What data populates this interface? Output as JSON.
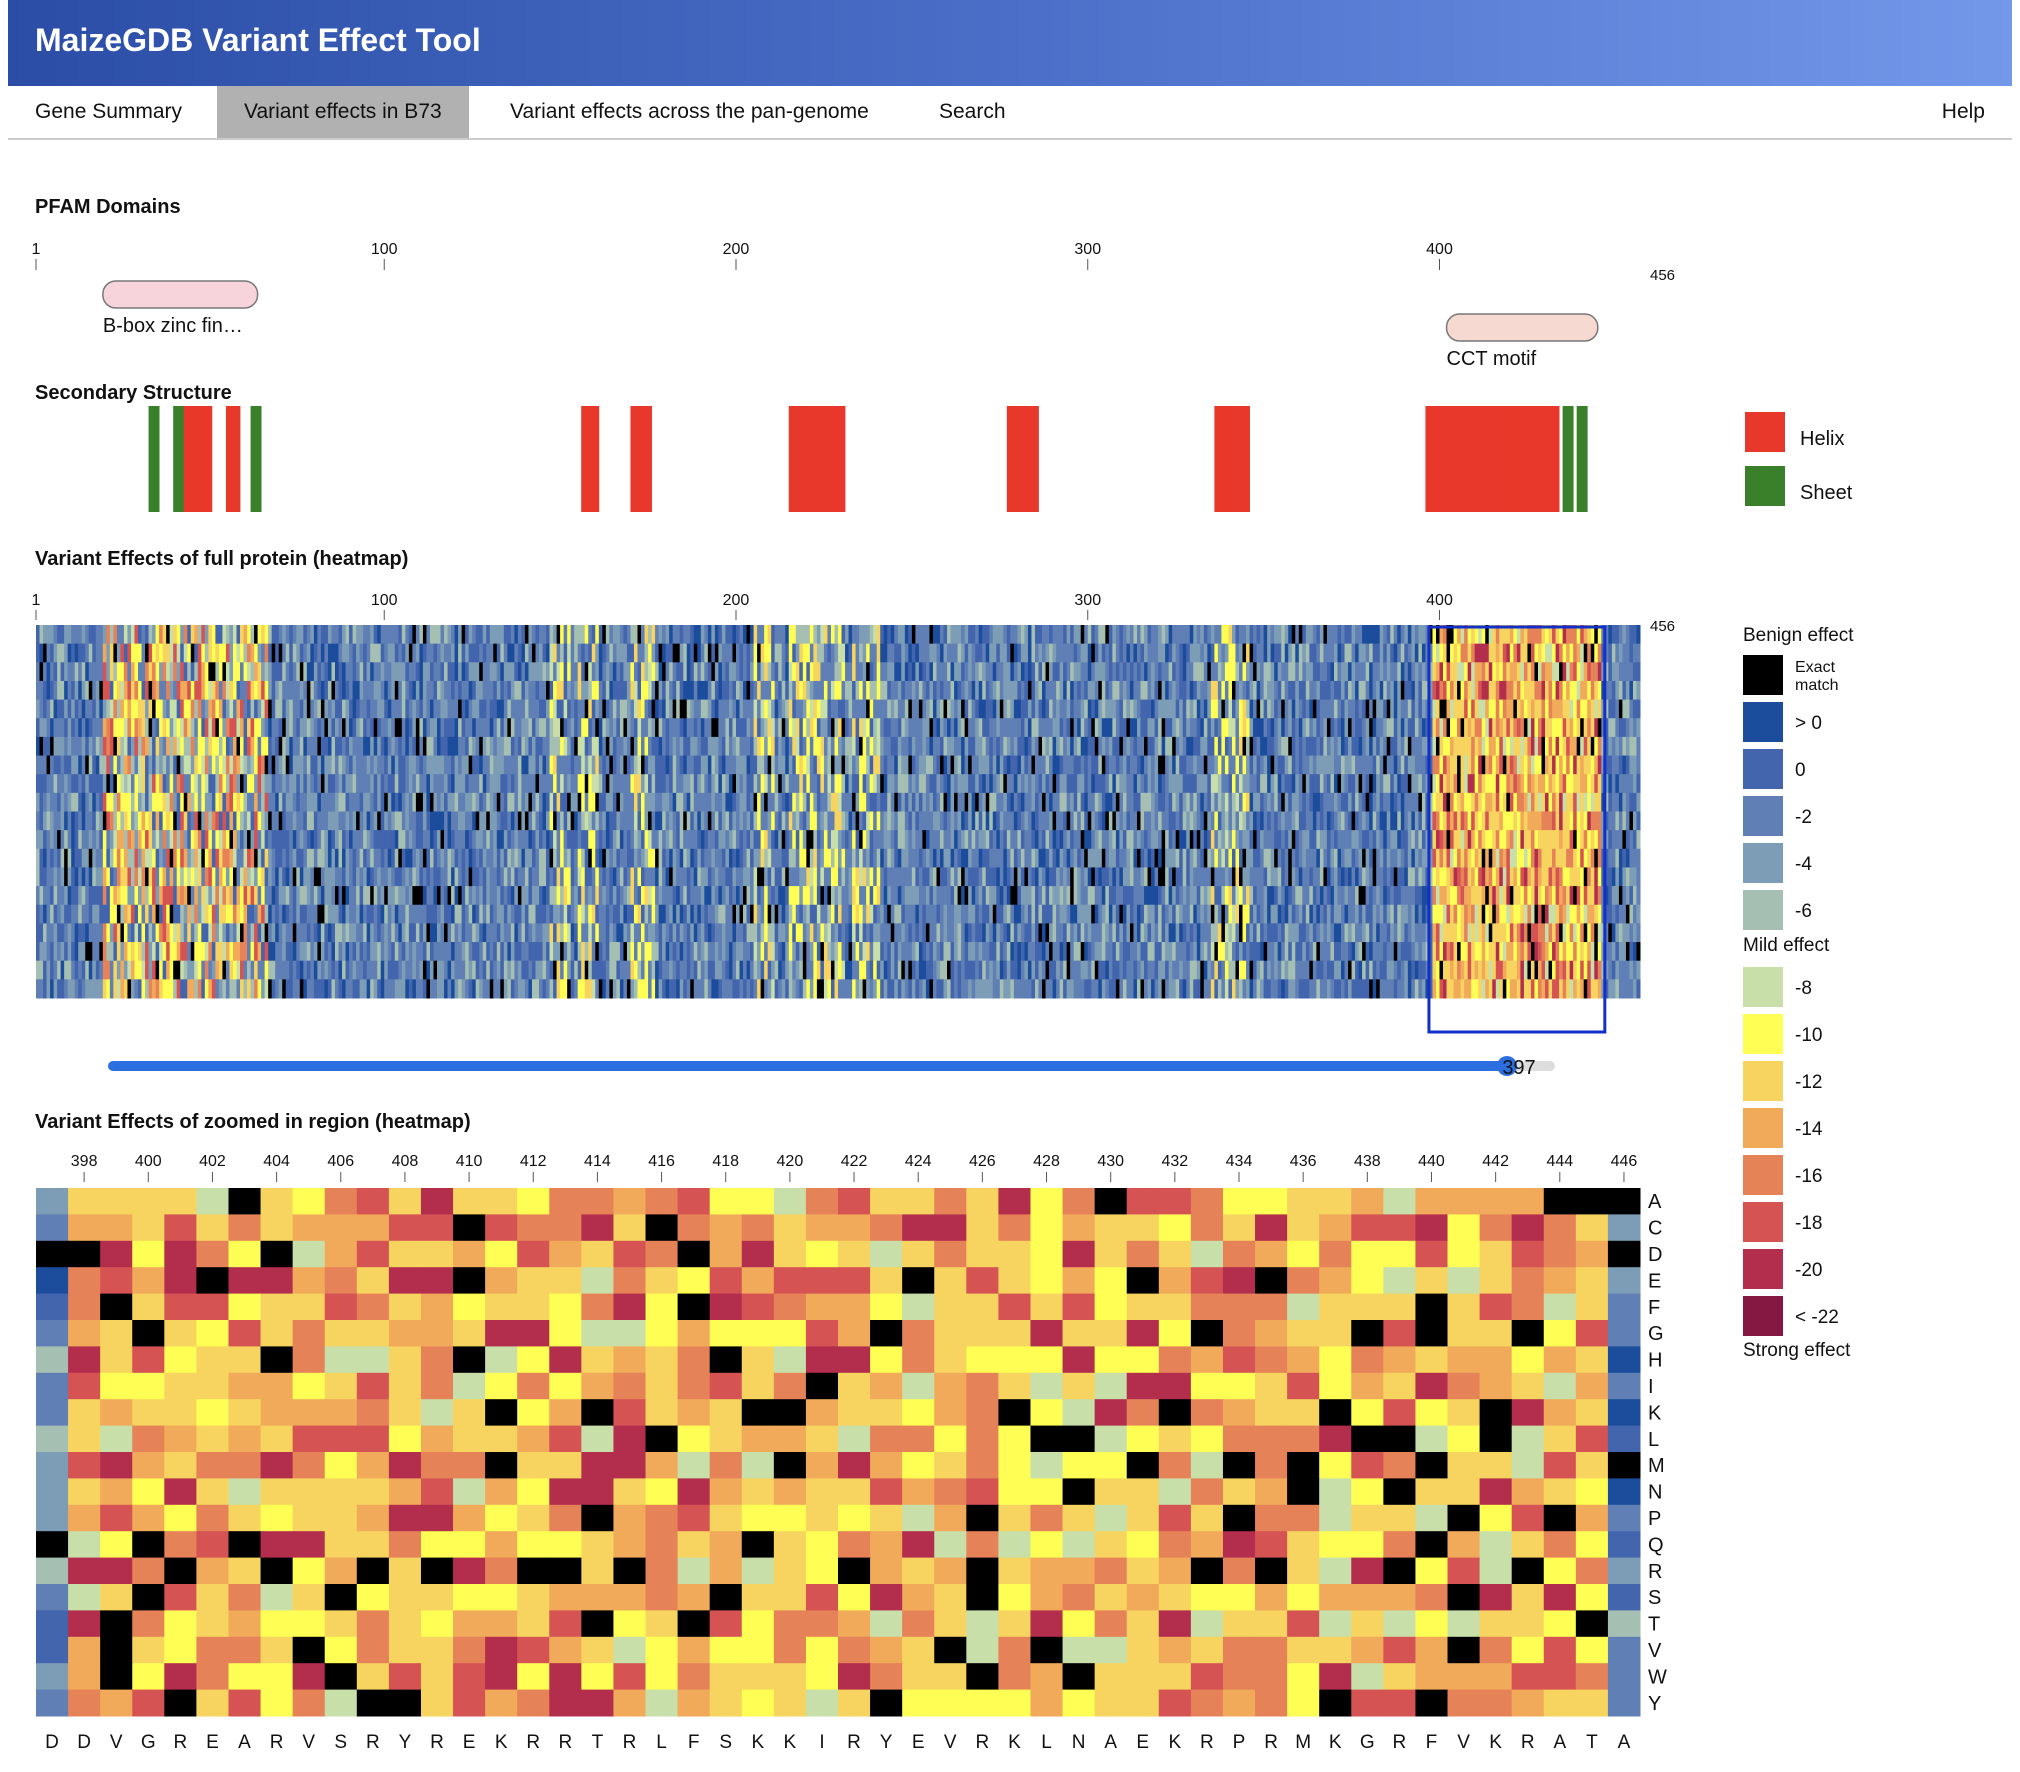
{
  "app": {
    "title": "MaizeGDB Variant Effect Tool"
  },
  "nav": {
    "tabs": [
      {
        "label": "Gene Summary",
        "active": false
      },
      {
        "label": "Variant effects in B73",
        "active": true
      },
      {
        "label": "Variant effects across the pan-genome",
        "active": false
      },
      {
        "label": "Search",
        "active": false
      }
    ],
    "help": "Help"
  },
  "protein_length": 456,
  "pfam": {
    "title": "PFAM Domains",
    "ticks": [
      "1",
      "100",
      "200",
      "300",
      "400"
    ],
    "end_label": "456",
    "domains": [
      {
        "label": "B-box zinc fin…",
        "start": 20,
        "end": 64,
        "color": "#f7d3dc"
      },
      {
        "label": "CCT motif",
        "start": 402,
        "end": 445,
        "color": "#f6dad1"
      }
    ]
  },
  "secondary": {
    "title": "Secondary Structure",
    "legend": [
      {
        "label": "Helix",
        "color": "#e8382b"
      },
      {
        "label": "Sheet",
        "color": "#3a7f2a"
      }
    ],
    "segments": [
      {
        "type": "sheet",
        "start": 33,
        "end": 35
      },
      {
        "type": "sheet",
        "start": 40,
        "end": 42
      },
      {
        "type": "helix",
        "start": 43,
        "end": 50
      },
      {
        "type": "helix",
        "start": 55,
        "end": 58
      },
      {
        "type": "sheet",
        "start": 62,
        "end": 64
      },
      {
        "type": "helix",
        "start": 156,
        "end": 160
      },
      {
        "type": "helix",
        "start": 170,
        "end": 175
      },
      {
        "type": "helix",
        "start": 215,
        "end": 230
      },
      {
        "type": "helix",
        "start": 277,
        "end": 285
      },
      {
        "type": "helix",
        "start": 336,
        "end": 345
      },
      {
        "type": "helix",
        "start": 396,
        "end": 433
      },
      {
        "type": "sheet",
        "start": 435,
        "end": 437
      },
      {
        "type": "sheet",
        "start": 439,
        "end": 441
      }
    ]
  },
  "full_heatmap": {
    "title": "Variant Effects of full protein (heatmap)",
    "ticks": [
      "1",
      "100",
      "200",
      "300",
      "400"
    ],
    "end_label": "456",
    "window_start": 397,
    "window_end": 446
  },
  "slider": {
    "value": "397"
  },
  "zoom_heatmap": {
    "title": "Variant Effects of zoomed in region (heatmap)",
    "start": 397,
    "position_labels": [
      "398",
      "400",
      "402",
      "404",
      "406",
      "408",
      "410",
      "412",
      "414",
      "416",
      "418",
      "420",
      "422",
      "424",
      "426",
      "428",
      "430",
      "432",
      "434",
      "436",
      "438",
      "440",
      "442",
      "444",
      "446"
    ],
    "amino_acids": [
      "A",
      "C",
      "D",
      "E",
      "F",
      "G",
      "H",
      "I",
      "K",
      "L",
      "M",
      "N",
      "P",
      "Q",
      "R",
      "S",
      "T",
      "V",
      "W",
      "Y"
    ],
    "reference": [
      "D",
      "D",
      "V",
      "G",
      "R",
      "E",
      "A",
      "R",
      "V",
      "S",
      "R",
      "Y",
      "R",
      "E",
      "K",
      "R",
      "R",
      "T",
      "R",
      "L",
      "F",
      "S",
      "K",
      "K",
      "I",
      "R",
      "Y",
      "E",
      "V",
      "R",
      "K",
      "L",
      "N",
      "A",
      "E",
      "K",
      "R",
      "P",
      "R",
      "M",
      "K",
      "G",
      "R",
      "F",
      "V",
      "K",
      "R",
      "A",
      "T",
      "A"
    ]
  },
  "legend": {
    "benign": "Benign effect",
    "mild": "Mild effect",
    "strong": "Strong effect",
    "items": [
      {
        "label": "Exact match",
        "color": "#000000"
      },
      {
        "label": "> 0",
        "color": "#1c4d9c"
      },
      {
        "label": "0",
        "color": "#4365ad"
      },
      {
        "label": "-2",
        "color": "#5f7fb5"
      },
      {
        "label": "-4",
        "color": "#7d9db6"
      },
      {
        "label": "-6",
        "color": "#a5bfb2"
      },
      {
        "label": "-8",
        "color": "#c8dfa9"
      },
      {
        "label": "-10",
        "color": "#fefe54"
      },
      {
        "label": "-12",
        "color": "#f6d45f"
      },
      {
        "label": "-14",
        "color": "#f1a95a"
      },
      {
        "label": "-16",
        "color": "#e58258"
      },
      {
        "label": "-18",
        "color": "#d55353"
      },
      {
        "label": "-20",
        "color": "#b32e4c"
      },
      {
        "label": "< -22",
        "color": "#841843"
      }
    ]
  }
}
